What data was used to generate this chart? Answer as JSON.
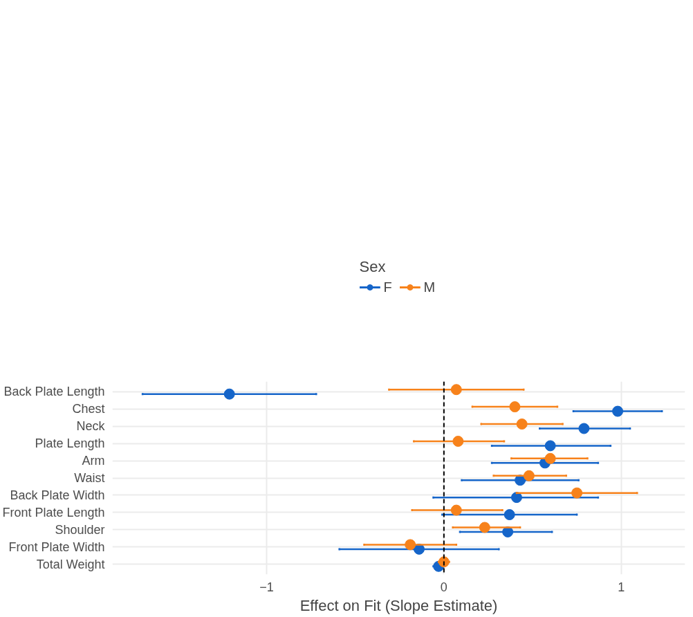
{
  "chart_data": {
    "type": "scatter",
    "orientation": "horizontal",
    "xlabel": "Effect on Fit (Slope Estimate)",
    "legend_title": "Sex",
    "categories": [
      "Back Plate Length",
      "Chest",
      "Neck",
      "Plate Length",
      "Arm",
      "Waist",
      "Back Plate Width",
      "Front Plate Length",
      "Shoulder",
      "Front Plate Width",
      "Total Weight"
    ],
    "series": [
      {
        "name": "F",
        "color": "#1565c9",
        "values": [
          -1.21,
          0.98,
          0.79,
          0.6,
          0.57,
          0.43,
          0.41,
          0.37,
          0.36,
          -0.14,
          -0.03
        ],
        "errors": [
          [
            -1.7,
            -0.72
          ],
          [
            0.73,
            1.23
          ],
          [
            0.54,
            1.05
          ],
          [
            0.27,
            0.94
          ],
          [
            0.27,
            0.87
          ],
          [
            0.1,
            0.76
          ],
          [
            -0.06,
            0.87
          ],
          [
            -0.01,
            0.75
          ],
          [
            0.09,
            0.61
          ],
          [
            -0.59,
            0.31
          ],
          [
            -0.06,
            0.0
          ]
        ]
      },
      {
        "name": "M",
        "color": "#f7821b",
        "values": [
          0.07,
          0.4,
          0.44,
          0.08,
          0.6,
          0.48,
          0.75,
          0.07,
          0.23,
          -0.19,
          0.0
        ],
        "errors": [
          [
            -0.31,
            0.45
          ],
          [
            0.16,
            0.64
          ],
          [
            0.21,
            0.67
          ],
          [
            -0.17,
            0.34
          ],
          [
            0.38,
            0.81
          ],
          [
            0.28,
            0.69
          ],
          [
            0.41,
            1.09
          ],
          [
            -0.18,
            0.33
          ],
          [
            0.05,
            0.43
          ],
          [
            -0.45,
            0.07
          ],
          [
            -0.03,
            0.03
          ]
        ]
      }
    ],
    "xlim": [
      -1.87,
      1.36
    ],
    "xticks": [
      -1,
      0,
      1
    ],
    "ref_lines": [
      {
        "axis": "x",
        "value": 0,
        "color": "#000000",
        "line_style": "dashed"
      }
    ],
    "grid": true,
    "legend": "top",
    "marker": "circle"
  }
}
